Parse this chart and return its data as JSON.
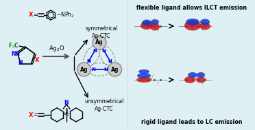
{
  "background_color": "#dff0f5",
  "fig_width": 3.72,
  "fig_height": 1.89,
  "dpi": 100,
  "top_right_text": "flexible ligand allows ILCT emission",
  "bottom_right_text": "rigid ligand leads to LC emission",
  "sym_label": "symmetrical\nAg-CTC",
  "unsym_label": "unsymmetrical\nAg-CTC",
  "ag2o_label": "Ag₂O",
  "f3c_label": "F₃C",
  "x_label": "X",
  "nh_label": "NH",
  "n_label": "N",
  "nph2_label": "-NPh₂",
  "me_label": "Me"
}
